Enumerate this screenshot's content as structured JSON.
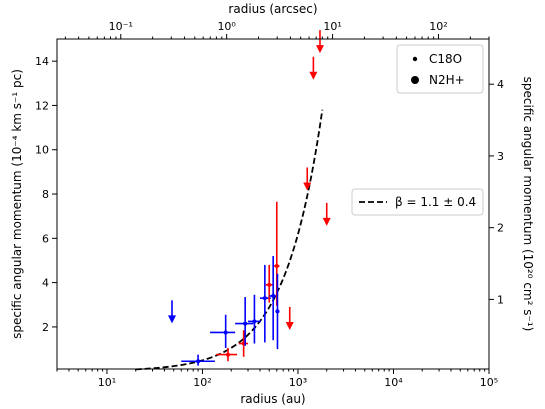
{
  "chart_data": {
    "type": "scatter",
    "title": "",
    "xlabel": "radius (au)",
    "xlabel_top": "radius (arcsec)",
    "ylabel": "specific angular momentum (10⁻⁴ km s⁻¹ pc)",
    "ylabel_right": "specific angular momentum (10²⁰ cm² s⁻¹)",
    "x_scale": "log",
    "xlim": [
      3,
      100000
    ],
    "ylim": [
      0.1,
      15
    ],
    "xlim_top": [
      0.025,
      300
    ],
    "ylim_right": [
      0.03,
      4.63
    ],
    "x_ticks": [
      10,
      100,
      1000,
      10000,
      100000
    ],
    "x_tick_labels": [
      "10¹",
      "10²",
      "10³",
      "10⁴",
      "10⁵"
    ],
    "y_ticks": [
      2,
      4,
      6,
      8,
      10,
      12,
      14
    ],
    "y_tick_labels": [
      "2",
      "4",
      "6",
      "8",
      "10",
      "12",
      "14"
    ],
    "top_ticks": [
      0.1,
      1,
      10,
      100
    ],
    "top_tick_labels": [
      "10⁻¹",
      "10⁰",
      "10¹",
      "10²"
    ],
    "right_ticks": [
      1,
      2,
      3,
      4
    ],
    "right_tick_labels": [
      "1",
      "2",
      "3",
      "4"
    ],
    "grid": false,
    "colors": {
      "red": "#ff0000",
      "blue": "#0000ff",
      "fit": "#000000"
    },
    "legend_markers": {
      "position": "top-right",
      "entries": [
        {
          "label": "C18O",
          "marker": "small-dot"
        },
        {
          "label": "N2H+",
          "marker": "large-dot"
        }
      ]
    },
    "legend_fit": {
      "position": "right",
      "entries": [
        {
          "label": "β = 1.1 ± 0.4",
          "style": "dashed"
        }
      ]
    },
    "fit_curve": {
      "name": "β = 1.1 ± 0.4",
      "amplitude": 0.0031,
      "exponent": 1.1,
      "x_range": [
        20,
        1800
      ]
    },
    "points": [
      {
        "x": 90,
        "y": 0.45,
        "xerr": [
          30,
          45
        ],
        "yerr": [
          0.2,
          0.3
        ],
        "color": "blue"
      },
      {
        "x": 175,
        "y": 1.75,
        "xerr": [
          55,
          45
        ],
        "yerr": [
          0.7,
          0.8
        ],
        "color": "blue"
      },
      {
        "x": 185,
        "y": 0.75,
        "xerr": [
          45,
          45
        ],
        "yerr": [
          0.3,
          0.3
        ],
        "color": "red"
      },
      {
        "x": 270,
        "y": 1.25,
        "xerr": [
          30,
          30
        ],
        "yerr": [
          0.6,
          0.6
        ],
        "color": "red"
      },
      {
        "x": 280,
        "y": 2.15,
        "xerr": [
          60,
          60
        ],
        "yerr": [
          1.0,
          1.2
        ],
        "color": "blue"
      },
      {
        "x": 350,
        "y": 2.25,
        "xerr": [
          50,
          60
        ],
        "yerr": [
          1.0,
          1.2
        ],
        "color": "blue"
      },
      {
        "x": 450,
        "y": 3.3,
        "xerr": [
          50,
          70
        ],
        "yerr": [
          2.0,
          1.5
        ],
        "color": "blue"
      },
      {
        "x": 500,
        "y": 3.9,
        "xerr": [
          40,
          40
        ],
        "yerr": [
          0.8,
          0.9
        ],
        "color": "red"
      },
      {
        "x": 550,
        "y": 3.4,
        "xerr": [
          50,
          50
        ],
        "yerr": [
          2.0,
          1.8
        ],
        "color": "blue"
      },
      {
        "x": 600,
        "y": 4.75,
        "xerr": [
          40,
          40
        ],
        "yerr": [
          1.8,
          2.9
        ],
        "color": "red"
      },
      {
        "x": 610,
        "y": 2.7,
        "xerr": [
          30,
          30
        ],
        "yerr": [
          1.7,
          1.7
        ],
        "color": "blue"
      }
    ],
    "upper_limits": [
      {
        "x": 48,
        "y": 3.2,
        "color": "blue"
      },
      {
        "x": 820,
        "y": 2.9,
        "color": "red"
      },
      {
        "x": 1250,
        "y": 9.2,
        "color": "red"
      },
      {
        "x": 1450,
        "y": 14.2,
        "color": "red"
      },
      {
        "x": 1700,
        "y": 15.4,
        "color": "red"
      },
      {
        "x": 2000,
        "y": 7.6,
        "color": "red"
      }
    ]
  }
}
